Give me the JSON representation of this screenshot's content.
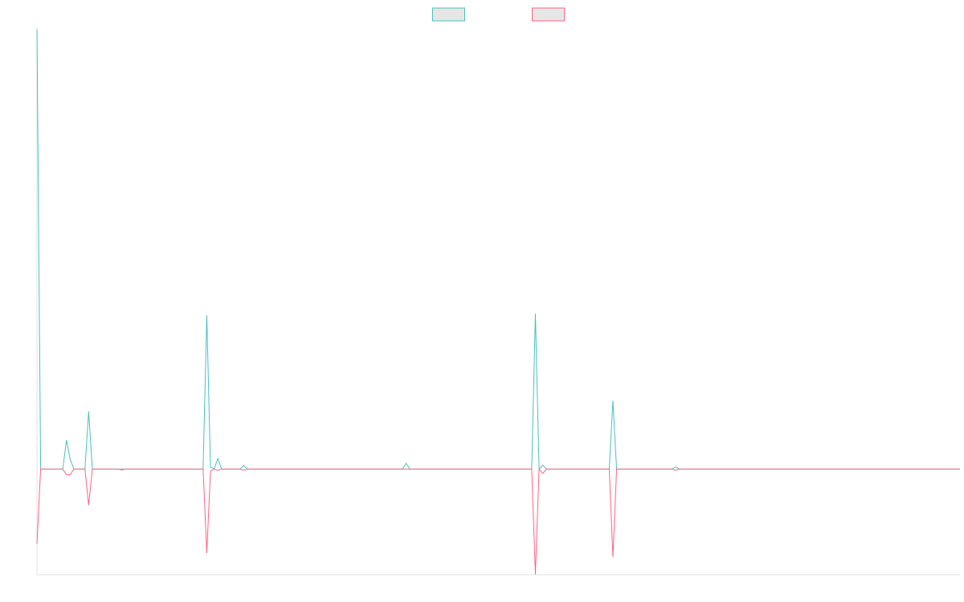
{
  "chart_data": {
    "type": "line",
    "x": [
      0,
      1,
      7,
      8,
      9,
      10,
      13,
      14,
      15,
      22,
      23,
      24,
      45,
      46,
      47,
      48,
      49,
      50,
      55,
      56,
      57,
      99,
      100,
      101,
      134,
      135,
      136,
      137,
      138,
      155,
      156,
      157,
      172,
      173,
      174,
      250
    ],
    "xlim": [
      0,
      250
    ],
    "ylim": [
      -24,
      100
    ],
    "legend": "top",
    "series": [
      {
        "color": "#4bc0c0",
        "values": [
          100,
          0,
          0,
          6.6,
          2.2,
          0,
          0,
          13.1,
          0,
          0,
          0,
          0,
          0,
          35,
          0.5,
          0,
          2.4,
          0,
          0,
          0.8,
          0,
          0,
          1.3,
          0,
          0,
          35.3,
          0,
          0.9,
          0,
          0,
          15.5,
          0,
          0,
          0.5,
          0,
          0
        ]
      },
      {
        "color": "#ff6384",
        "values": [
          -17,
          0,
          0,
          -1.3,
          -1.3,
          0,
          0,
          -8.2,
          0,
          0,
          -0.2,
          0,
          0,
          -19.1,
          -0.5,
          0,
          -0.3,
          0,
          0,
          -0.3,
          0,
          0,
          0,
          0,
          0,
          -23.9,
          0,
          -1,
          0,
          0,
          -20,
          0,
          0,
          -0.3,
          0,
          0
        ]
      }
    ]
  }
}
